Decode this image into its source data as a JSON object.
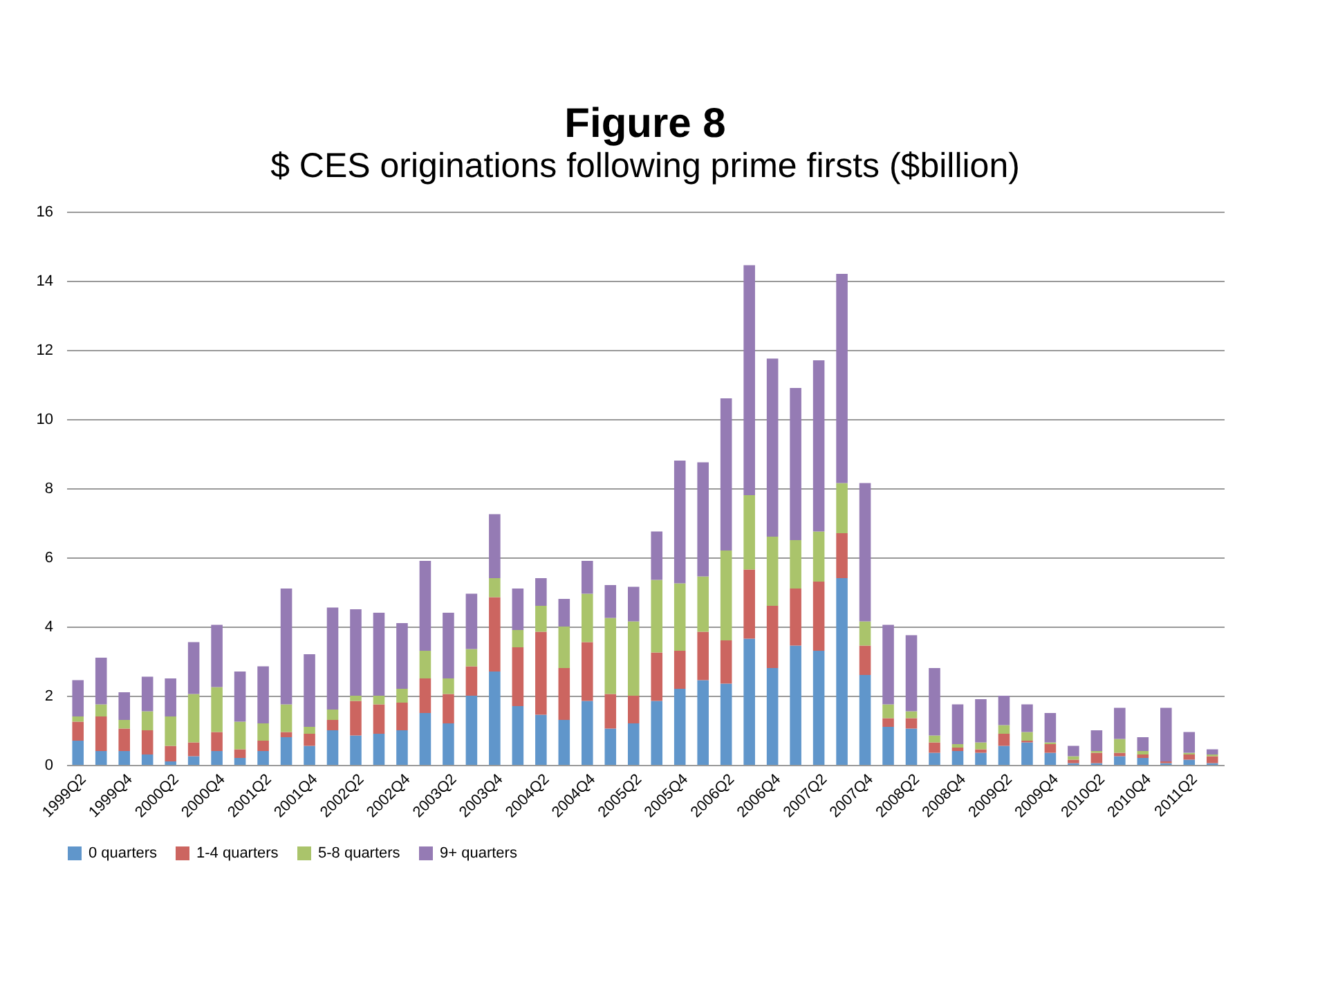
{
  "chart_data": {
    "type": "bar",
    "title": "Figure 8",
    "subtitle": "$ CES originations following prime firsts ($billion)",
    "categories": [
      "1999Q2",
      null,
      "1999Q4",
      null,
      "2000Q2",
      null,
      "2000Q4",
      null,
      "2001Q2",
      null,
      "2001Q4",
      null,
      "2002Q2",
      null,
      "2002Q4",
      null,
      "2003Q2",
      null,
      "2003Q4",
      null,
      "2004Q2",
      null,
      "2004Q4",
      null,
      "2005Q2",
      null,
      "2005Q4",
      null,
      "2006Q2",
      null,
      "2006Q4",
      null,
      "2007Q2",
      null,
      "2007Q4",
      null,
      "2008Q2",
      null,
      "2008Q4",
      null,
      "2009Q2",
      null,
      "2009Q4",
      null,
      "2010Q2",
      null,
      "2010Q4",
      null,
      "2011Q2",
      null
    ],
    "stacked": true,
    "series": [
      {
        "name": "0 quarters",
        "color": "#6096cb",
        "values": [
          0.7,
          0.4,
          0.4,
          0.3,
          0.1,
          0.25,
          0.4,
          0.2,
          0.4,
          0.8,
          0.55,
          1.0,
          0.85,
          0.9,
          1.0,
          1.5,
          1.2,
          2.0,
          2.7,
          1.7,
          1.45,
          1.3,
          1.85,
          1.05,
          1.2,
          1.85,
          2.2,
          2.45,
          2.35,
          3.65,
          2.8,
          3.45,
          3.3,
          5.4,
          2.6,
          1.1,
          1.05,
          0.35,
          0.4,
          0.35,
          0.55,
          0.65,
          0.35,
          0.05,
          0.05,
          0.25,
          0.2,
          0.05,
          0.15,
          0.05
        ]
      },
      {
        "name": "1-4 quarters",
        "color": "#cc6560",
        "values": [
          0.55,
          1.0,
          0.65,
          0.7,
          0.45,
          0.4,
          0.55,
          0.25,
          0.3,
          0.15,
          0.35,
          0.3,
          1.0,
          0.85,
          0.8,
          1.0,
          0.85,
          0.85,
          2.15,
          1.7,
          2.4,
          1.5,
          1.7,
          1.0,
          0.8,
          1.4,
          1.1,
          1.4,
          1.25,
          2.0,
          1.8,
          1.65,
          2.0,
          1.3,
          0.85,
          0.25,
          0.3,
          0.3,
          0.1,
          0.1,
          0.35,
          0.05,
          0.25,
          0.1,
          0.3,
          0.1,
          0.1,
          0.05,
          0.15,
          0.2
        ]
      },
      {
        "name": "5-8 quarters",
        "color": "#aac46b",
        "values": [
          0.15,
          0.35,
          0.25,
          0.55,
          0.85,
          1.4,
          1.3,
          0.8,
          0.5,
          0.8,
          0.2,
          0.3,
          0.15,
          0.25,
          0.4,
          0.8,
          0.45,
          0.5,
          0.55,
          0.5,
          0.75,
          1.2,
          1.4,
          2.2,
          2.15,
          2.1,
          1.95,
          1.6,
          2.6,
          2.15,
          2.0,
          1.4,
          1.45,
          1.45,
          0.7,
          0.4,
          0.2,
          0.2,
          0.1,
          0.2,
          0.25,
          0.25,
          0.05,
          0.1,
          0.05,
          0.4,
          0.1,
          0,
          0.05,
          0.05
        ]
      },
      {
        "name": "9+ quarters",
        "color": "#957bb4",
        "values": [
          1.05,
          1.35,
          0.8,
          1.0,
          1.1,
          1.5,
          1.8,
          1.45,
          1.65,
          3.35,
          2.1,
          2.95,
          2.5,
          2.4,
          1.9,
          2.6,
          1.9,
          1.6,
          1.85,
          1.2,
          0.8,
          0.8,
          0.95,
          0.95,
          1.0,
          1.4,
          3.55,
          3.3,
          4.4,
          6.65,
          5.15,
          4.4,
          4.95,
          6.05,
          4.0,
          2.3,
          2.2,
          1.95,
          1.15,
          1.25,
          0.85,
          0.8,
          0.85,
          0.3,
          0.6,
          0.9,
          0.4,
          1.55,
          0.6,
          0.15
        ]
      }
    ],
    "ylim": [
      0,
      16
    ],
    "yticks": [
      0,
      2,
      4,
      6,
      8,
      10,
      12,
      14,
      16
    ],
    "grid": "y",
    "legend": "bottom"
  }
}
